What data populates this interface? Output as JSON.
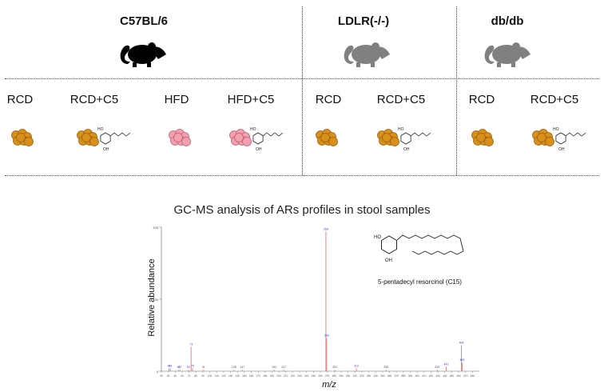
{
  "strains": [
    {
      "name": "C57BL/6",
      "mouse_color": "#000000"
    },
    {
      "name": "LDLR(-/-)",
      "mouse_color": "#808080"
    },
    {
      "name": "db/db",
      "mouse_color": "#808080"
    }
  ],
  "groups": [
    {
      "label": "RCD",
      "diet": "RCD",
      "color": "#d9901a",
      "with_c5": false
    },
    {
      "label": "RCD+C5",
      "diet": "RCD",
      "color": "#d9901a",
      "with_c5": true
    },
    {
      "label": "HFD",
      "diet": "HFD",
      "color": "#f2a0b0",
      "with_c5": false
    },
    {
      "label": "HFD+C5",
      "diet": "HFD",
      "color": "#f2a0b0",
      "with_c5": true
    },
    {
      "label": "RCD",
      "diet": "RCD",
      "color": "#d9901a",
      "with_c5": false
    },
    {
      "label": "RCD+C5",
      "diet": "RCD",
      "color": "#d9901a",
      "with_c5": true
    },
    {
      "label": "RCD",
      "diet": "RCD",
      "color": "#d9901a",
      "with_c5": false
    },
    {
      "label": "RCD+C5",
      "diet": "RCD",
      "color": "#d9901a",
      "with_c5": true
    }
  ],
  "c5_structure": {
    "substituent_labels": [
      "HO",
      "OH"
    ]
  },
  "chart_title": "GC-MS analysis of ARs profiles in stool samples",
  "chart_data": {
    "type": "bar",
    "title": "GC-MS analysis of ARs profiles in stool samples",
    "xlabel": "m/z",
    "ylabel": "Relative abundance",
    "xlim": [
      30,
      490
    ],
    "ylim": [
      0,
      100
    ],
    "y_ticks": [
      0,
      50,
      100
    ],
    "peak_color": "#f08080",
    "peak_label_color": "#3b3bd0",
    "x_tick_values": [
      30,
      40,
      50,
      60,
      70,
      80,
      90,
      100,
      110,
      120,
      130,
      140,
      150,
      160,
      170,
      180,
      190,
      200,
      210,
      220,
      230,
      240,
      250,
      260,
      270,
      280,
      290,
      300,
      310,
      320,
      330,
      340,
      350,
      360,
      370,
      380,
      390,
      400,
      410,
      420,
      430,
      440,
      450,
      460,
      470,
      480
    ],
    "peaks": [
      {
        "mz": 41,
        "value": 2,
        "label": "41"
      },
      {
        "mz": 43,
        "value": 2,
        "label": "43"
      },
      {
        "mz": 55,
        "value": 1,
        "label": "55"
      },
      {
        "mz": 57,
        "value": 1,
        "label": "57"
      },
      {
        "mz": 69,
        "value": 1,
        "label": "69"
      },
      {
        "mz": 73,
        "value": 17,
        "label": "73"
      },
      {
        "mz": 75,
        "value": 2,
        "label": "75"
      },
      {
        "mz": 91,
        "value": 1,
        "label": "91"
      },
      {
        "mz": 135,
        "value": 1,
        "label": "135"
      },
      {
        "mz": 147,
        "value": 1,
        "label": "147"
      },
      {
        "mz": 193,
        "value": 1,
        "label": "193"
      },
      {
        "mz": 207,
        "value": 1,
        "label": "207"
      },
      {
        "mz": 268,
        "value": 97,
        "label": "268"
      },
      {
        "mz": 269,
        "value": 23,
        "label": "269"
      },
      {
        "mz": 281,
        "value": 1,
        "label": "281"
      },
      {
        "mz": 312,
        "value": 2,
        "label": "312"
      },
      {
        "mz": 355,
        "value": 1,
        "label": "355"
      },
      {
        "mz": 429,
        "value": 1,
        "label": "429"
      },
      {
        "mz": 442,
        "value": 3,
        "label": "442"
      },
      {
        "mz": 464,
        "value": 18,
        "label": "464"
      },
      {
        "mz": 465,
        "value": 6,
        "label": "465"
      }
    ],
    "annotations": [
      {
        "text": "5-pentadecyl resorcinol (C15)"
      }
    ]
  }
}
